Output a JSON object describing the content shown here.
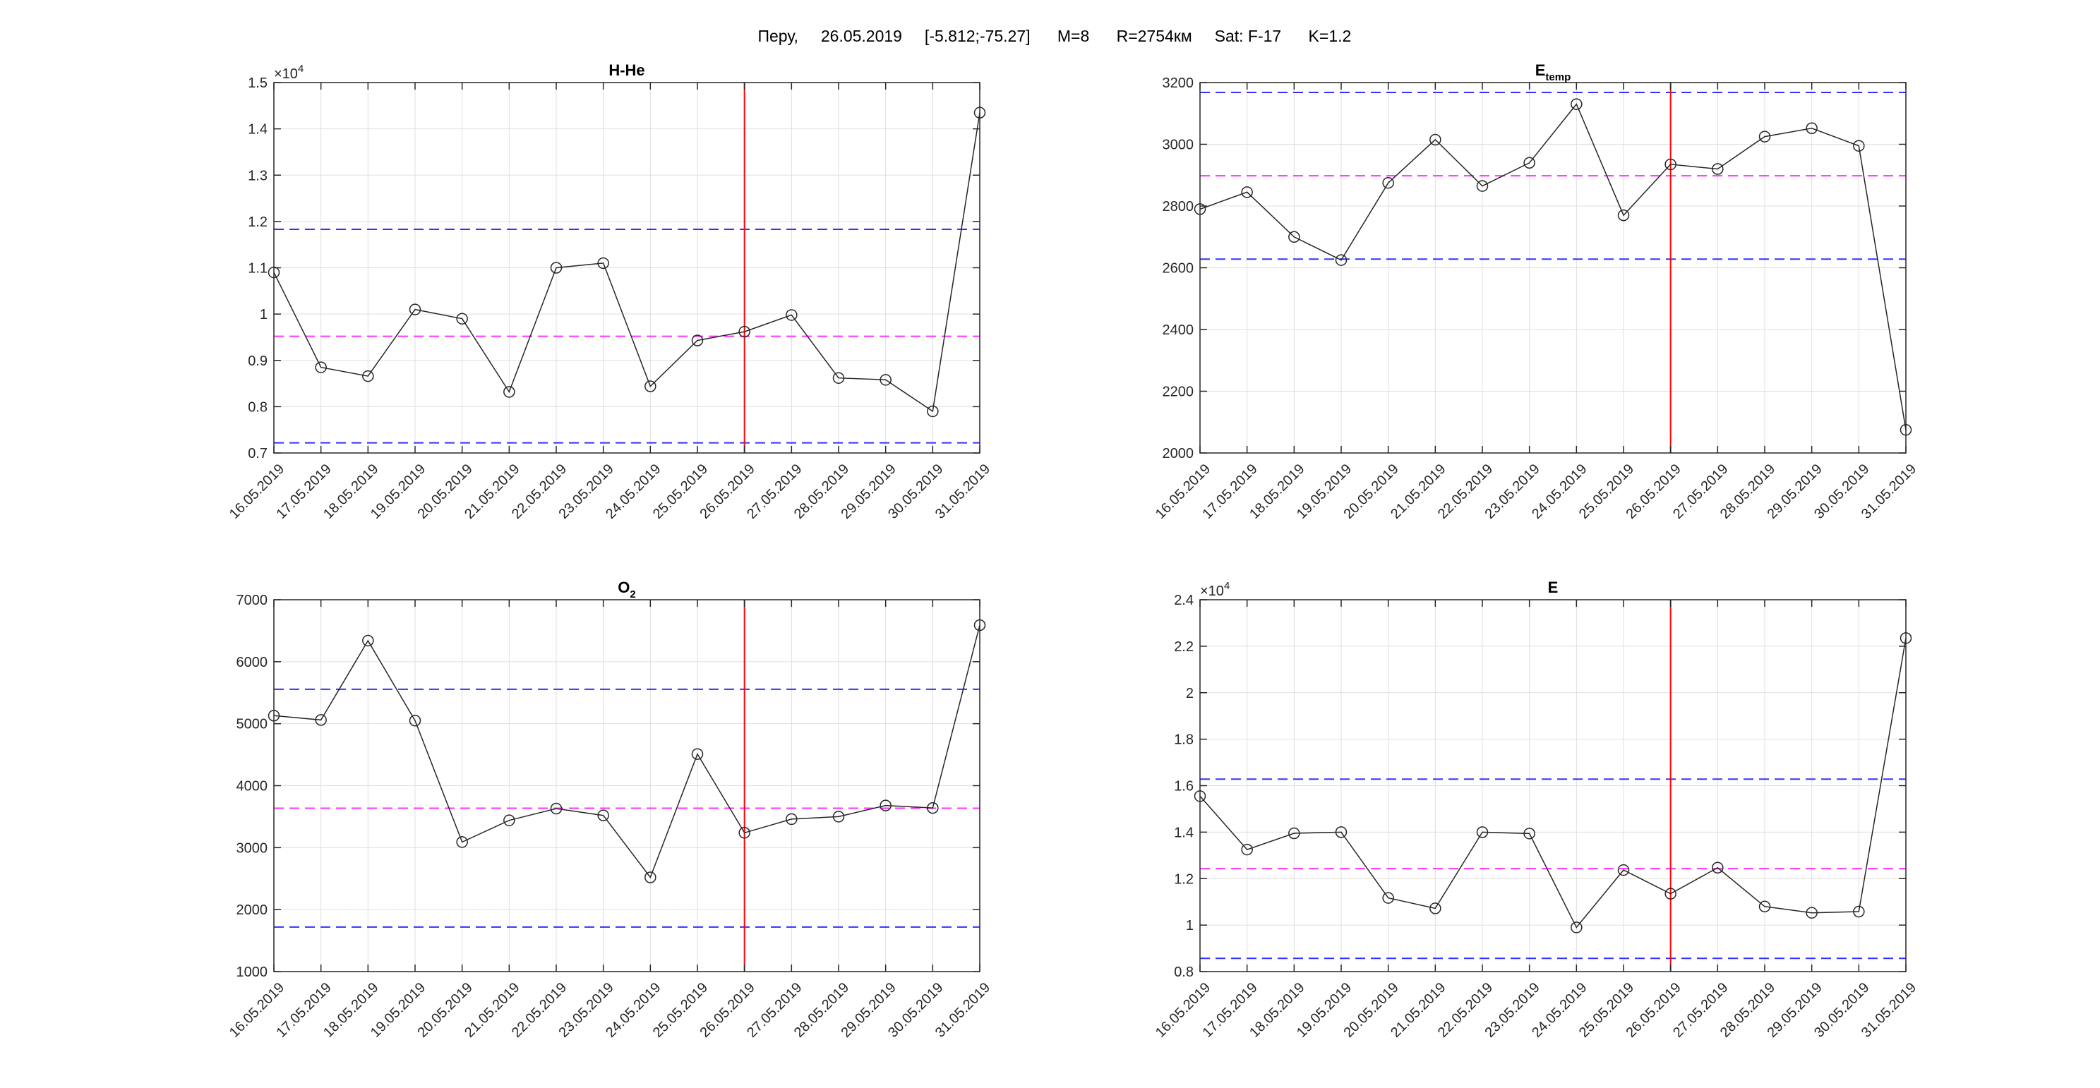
{
  "header": {
    "text": "Перу,     26.05.2019     [-5.812;-75.27]      M=8      R=2754км     Sat: F-17      K=1.2"
  },
  "chart_data": [
    {
      "type": "line",
      "title": "H-He",
      "title_sub": "",
      "exponent_label": "×10",
      "exponent_power": "4",
      "x": [
        "16.05.2019",
        "17.05.2019",
        "18.05.2019",
        "19.05.2019",
        "20.05.2019",
        "21.05.2019",
        "22.05.2019",
        "23.05.2019",
        "24.05.2019",
        "25.05.2019",
        "26.05.2019",
        "27.05.2019",
        "28.05.2019",
        "29.05.2019",
        "30.05.2019",
        "31.05.2019"
      ],
      "values": [
        1.09,
        0.885,
        0.866,
        1.01,
        0.99,
        0.832,
        1.1,
        1.11,
        0.844,
        0.943,
        0.962,
        0.998,
        0.862,
        0.858,
        0.79,
        1.435
      ],
      "ylim": [
        0.7,
        1.5
      ],
      "yticks": [
        0.7,
        0.8,
        0.9,
        1.0,
        1.1,
        1.2,
        1.3,
        1.4,
        1.5
      ],
      "ytick_labels": [
        "0.7",
        "0.8",
        "0.9",
        "1",
        "1.1",
        "1.2",
        "1.3",
        "1.4",
        "1.5"
      ],
      "ref_lines": {
        "upper": 1.183,
        "mean": 0.952,
        "lower": 0.722
      },
      "event_date": "26.05.2019",
      "grid": true,
      "colors": {
        "series": "#262626",
        "mean": "#ff00ff",
        "bounds": "#0000ff",
        "event": "#ff0000"
      }
    },
    {
      "type": "line",
      "title": "E",
      "title_sub": "temp",
      "exponent_label": "",
      "exponent_power": "",
      "x": [
        "16.05.2019",
        "17.05.2019",
        "18.05.2019",
        "19.05.2019",
        "20.05.2019",
        "21.05.2019",
        "22.05.2019",
        "23.05.2019",
        "24.05.2019",
        "25.05.2019",
        "26.05.2019",
        "27.05.2019",
        "28.05.2019",
        "29.05.2019",
        "30.05.2019",
        "31.05.2019"
      ],
      "values": [
        2790,
        2845,
        2700,
        2625,
        2875,
        3015,
        2865,
        2940,
        3130,
        2770,
        2935,
        2920,
        3025,
        3052,
        2995,
        2075
      ],
      "ylim": [
        2000,
        3200
      ],
      "yticks": [
        2000,
        2200,
        2400,
        2600,
        2800,
        3000,
        3200
      ],
      "ytick_labels": [
        "2000",
        "2200",
        "2400",
        "2600",
        "2800",
        "3000",
        "3200"
      ],
      "ref_lines": {
        "upper": 3168,
        "mean": 2898,
        "lower": 2628
      },
      "event_date": "26.05.2019",
      "grid": true,
      "colors": {
        "series": "#262626",
        "mean": "#ff00ff",
        "bounds": "#0000ff",
        "event": "#ff0000"
      }
    },
    {
      "type": "line",
      "title": "O",
      "title_sub": "2",
      "exponent_label": "",
      "exponent_power": "",
      "x": [
        "16.05.2019",
        "17.05.2019",
        "18.05.2019",
        "19.05.2019",
        "20.05.2019",
        "21.05.2019",
        "22.05.2019",
        "23.05.2019",
        "24.05.2019",
        "25.05.2019",
        "26.05.2019",
        "27.05.2019",
        "28.05.2019",
        "29.05.2019",
        "30.05.2019",
        "31.05.2019"
      ],
      "values": [
        5130,
        5060,
        6340,
        5050,
        3090,
        3440,
        3630,
        3520,
        2520,
        4510,
        3240,
        3460,
        3500,
        3680,
        3640,
        6590
      ],
      "ylim": [
        1000,
        7000
      ],
      "yticks": [
        1000,
        2000,
        3000,
        4000,
        5000,
        6000,
        7000
      ],
      "ytick_labels": [
        "1000",
        "2000",
        "3000",
        "4000",
        "5000",
        "6000",
        "7000"
      ],
      "ref_lines": {
        "upper": 5555,
        "mean": 3636,
        "lower": 1718
      },
      "event_date": "26.05.2019",
      "grid": true,
      "colors": {
        "series": "#262626",
        "mean": "#ff00ff",
        "bounds": "#0000ff",
        "event": "#ff0000"
      }
    },
    {
      "type": "line",
      "title": "E",
      "title_sub": "",
      "exponent_label": "×10",
      "exponent_power": "4",
      "x": [
        "16.05.2019",
        "17.05.2019",
        "18.05.2019",
        "19.05.2019",
        "20.05.2019",
        "21.05.2019",
        "22.05.2019",
        "23.05.2019",
        "24.05.2019",
        "25.05.2019",
        "26.05.2019",
        "27.05.2019",
        "28.05.2019",
        "29.05.2019",
        "30.05.2019",
        "31.05.2019"
      ],
      "values": [
        1.555,
        1.325,
        1.395,
        1.4,
        1.117,
        1.072,
        1.4,
        1.394,
        0.99,
        1.237,
        1.135,
        1.247,
        1.08,
        1.053,
        1.058,
        2.235
      ],
      "ylim": [
        0.8,
        2.4
      ],
      "yticks": [
        0.8,
        1.0,
        1.2,
        1.4,
        1.6,
        1.8,
        2.0,
        2.2,
        2.4
      ],
      "ytick_labels": [
        "0.8",
        "1",
        "1.2",
        "1.4",
        "1.6",
        "1.8",
        "2",
        "2.2",
        "2.4"
      ],
      "ref_lines": {
        "upper": 1.628,
        "mean": 1.243,
        "lower": 0.857
      },
      "event_date": "26.05.2019",
      "grid": true,
      "colors": {
        "series": "#262626",
        "mean": "#ff00ff",
        "bounds": "#0000ff",
        "event": "#ff0000"
      }
    }
  ]
}
